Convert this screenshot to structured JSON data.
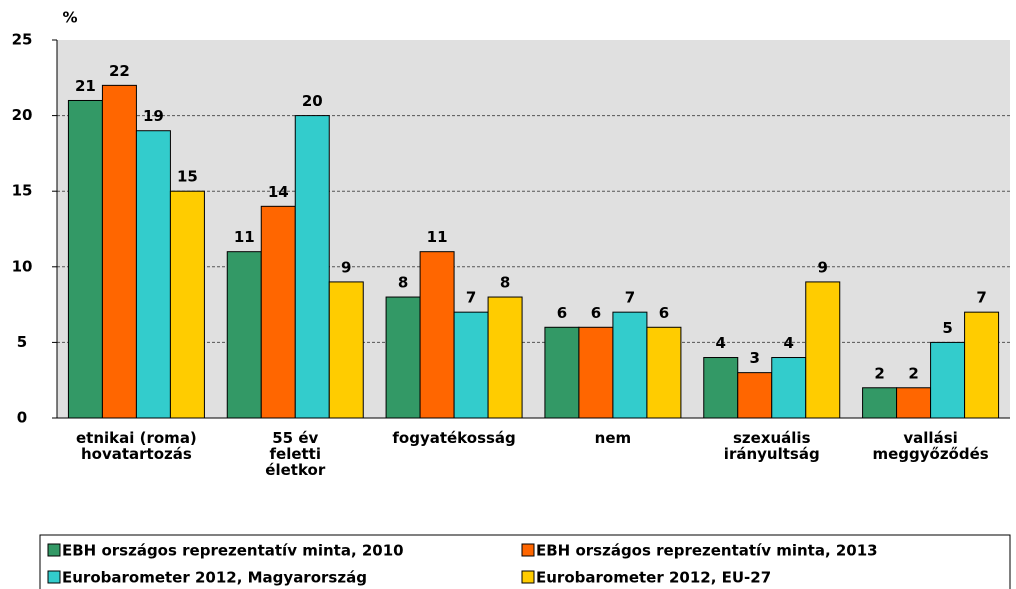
{
  "chart_data": {
    "type": "bar",
    "y_label": "%",
    "categories": [
      "etnikai (roma)\nhovatartozás",
      "55 év\nfeletti\néletkor",
      "fogyatékosság",
      "nem",
      "szexuális\nirányultság",
      "vallási\nmeggyőződés"
    ],
    "series": [
      {
        "name": "EBH országos reprezentatív minta, 2010",
        "color": "#339966",
        "values": [
          21,
          11,
          8,
          6,
          4,
          2
        ]
      },
      {
        "name": "EBH országos reprezentatív minta, 2013",
        "color": "#ff6600",
        "values": [
          22,
          14,
          11,
          6,
          3,
          2
        ]
      },
      {
        "name": "Eurobarometer 2012, Magyarország",
        "color": "#33cccc",
        "values": [
          19,
          20,
          7,
          7,
          4,
          5
        ]
      },
      {
        "name": "Eurobarometer 2012, EU-27",
        "color": "#ffcc00",
        "values": [
          15,
          9,
          8,
          6,
          9,
          7
        ]
      }
    ],
    "ylim": [
      0,
      25
    ],
    "yticks": [
      0,
      5,
      10,
      15,
      20,
      25
    ],
    "grid": true,
    "legend": "bottom"
  }
}
